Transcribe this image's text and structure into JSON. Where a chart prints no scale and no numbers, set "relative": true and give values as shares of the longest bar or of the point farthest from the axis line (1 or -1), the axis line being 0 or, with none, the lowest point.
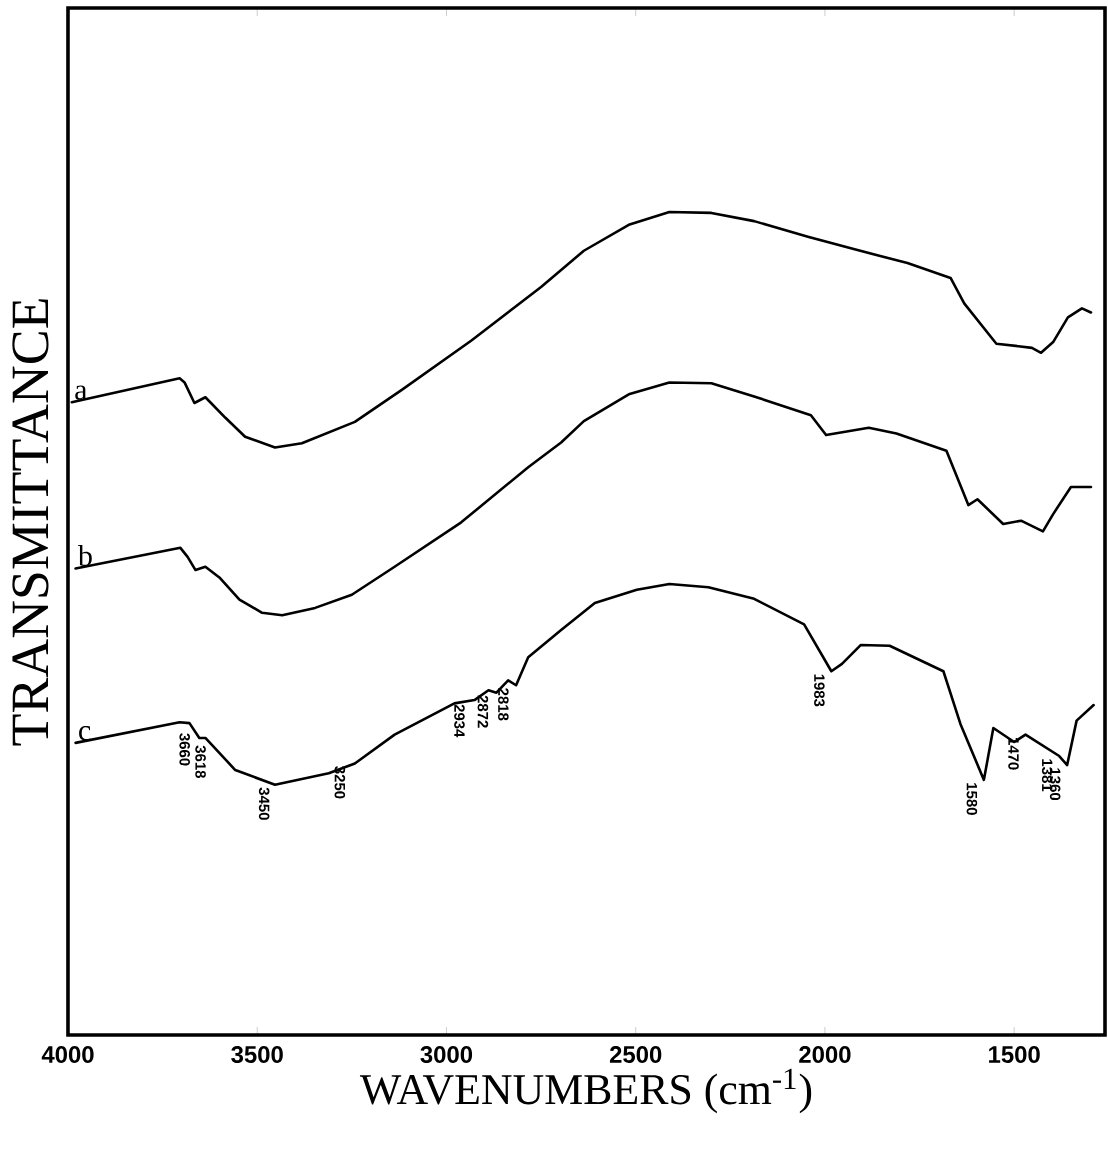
{
  "chart_data": {
    "type": "line",
    "xlabel": "WAVENUMBERS  (cm$^{-1}$)",
    "ylabel": "TRANSMITTANCE",
    "relative": true,
    "xlim": [
      4000,
      1260
    ],
    "xticks": [
      4000,
      3500,
      3000,
      2500,
      2000,
      1500
    ],
    "marker": "none",
    "line_style": "solid",
    "series": [
      {
        "name": "a",
        "color": "#000000",
        "x": [
          3990,
          3705,
          3692,
          3666,
          3637,
          3584,
          3532,
          3453,
          3382,
          3242,
          3118,
          2934,
          2750,
          2637,
          2516,
          2411,
          2300,
          2187,
          2045,
          1924,
          1782,
          1668,
          1632,
          1547,
          1489,
          1453,
          1429,
          1397,
          1358,
          1321,
          1297
        ],
        "values": [
          0.769,
          0.798,
          0.793,
          0.768,
          0.775,
          0.75,
          0.727,
          0.714,
          0.719,
          0.745,
          0.784,
          0.844,
          0.909,
          0.953,
          0.985,
          1.0,
          0.999,
          0.989,
          0.97,
          0.955,
          0.938,
          0.92,
          0.889,
          0.84,
          0.837,
          0.835,
          0.829,
          0.842,
          0.872,
          0.883,
          0.878
        ]
      },
      {
        "name": "b",
        "color": "#000000",
        "x": [
          3980,
          3703,
          3684,
          3663,
          3637,
          3600,
          3547,
          3487,
          3434,
          3347,
          3250,
          3137,
          2961,
          2784,
          2697,
          2637,
          2516,
          2411,
          2300,
          2187,
          2037,
          1997,
          1884,
          1811,
          1679,
          1621,
          1597,
          1529,
          1482,
          1424,
          1397,
          1350,
          1297
        ],
        "values": [
          0.567,
          0.592,
          0.581,
          0.565,
          0.569,
          0.556,
          0.529,
          0.513,
          0.51,
          0.519,
          0.535,
          0.569,
          0.623,
          0.69,
          0.72,
          0.746,
          0.779,
          0.793,
          0.792,
          0.776,
          0.753,
          0.729,
          0.738,
          0.731,
          0.71,
          0.644,
          0.651,
          0.621,
          0.625,
          0.612,
          0.633,
          0.666,
          0.666
        ]
      },
      {
        "name": "c",
        "color": "#000000",
        "x": [
          3980,
          3705,
          3679,
          3653,
          3637,
          3558,
          3453,
          3311,
          3242,
          3137,
          2979,
          2926,
          2889,
          2868,
          2837,
          2816,
          2784,
          2697,
          2608,
          2497,
          2411,
          2308,
          2187,
          2055,
          1983,
          1955,
          1905,
          1829,
          1687,
          1642,
          1580,
          1555,
          1500,
          1470,
          1381,
          1360,
          1335,
          1290
        ],
        "values": [
          0.355,
          0.38,
          0.379,
          0.361,
          0.361,
          0.322,
          0.304,
          0.318,
          0.33,
          0.365,
          0.403,
          0.407,
          0.419,
          0.416,
          0.431,
          0.425,
          0.459,
          0.492,
          0.525,
          0.541,
          0.548,
          0.544,
          0.53,
          0.499,
          0.442,
          0.451,
          0.474,
          0.473,
          0.442,
          0.378,
          0.31,
          0.373,
          0.356,
          0.365,
          0.339,
          0.328,
          0.382,
          0.401
        ]
      }
    ],
    "annotations": [
      {
        "text": "3660",
        "x": 3660,
        "y": 0.37
      },
      {
        "text": "3618",
        "x": 3618,
        "y": 0.355
      },
      {
        "text": "3450",
        "x": 3450,
        "y": 0.304
      },
      {
        "text": "3250",
        "x": 3250,
        "y": 0.33
      },
      {
        "text": "2934",
        "x": 2934,
        "y": 0.405
      },
      {
        "text": "2872",
        "x": 2872,
        "y": 0.416
      },
      {
        "text": "2818",
        "x": 2818,
        "y": 0.425
      },
      {
        "text": "1983",
        "x": 1983,
        "y": 0.442
      },
      {
        "text": "1580",
        "x": 1580,
        "y": 0.31
      },
      {
        "text": "1470",
        "x": 1470,
        "y": 0.365
      },
      {
        "text": "1381",
        "x": 1381,
        "y": 0.339
      },
      {
        "text": "1360",
        "x": 1360,
        "y": 0.328
      }
    ]
  }
}
